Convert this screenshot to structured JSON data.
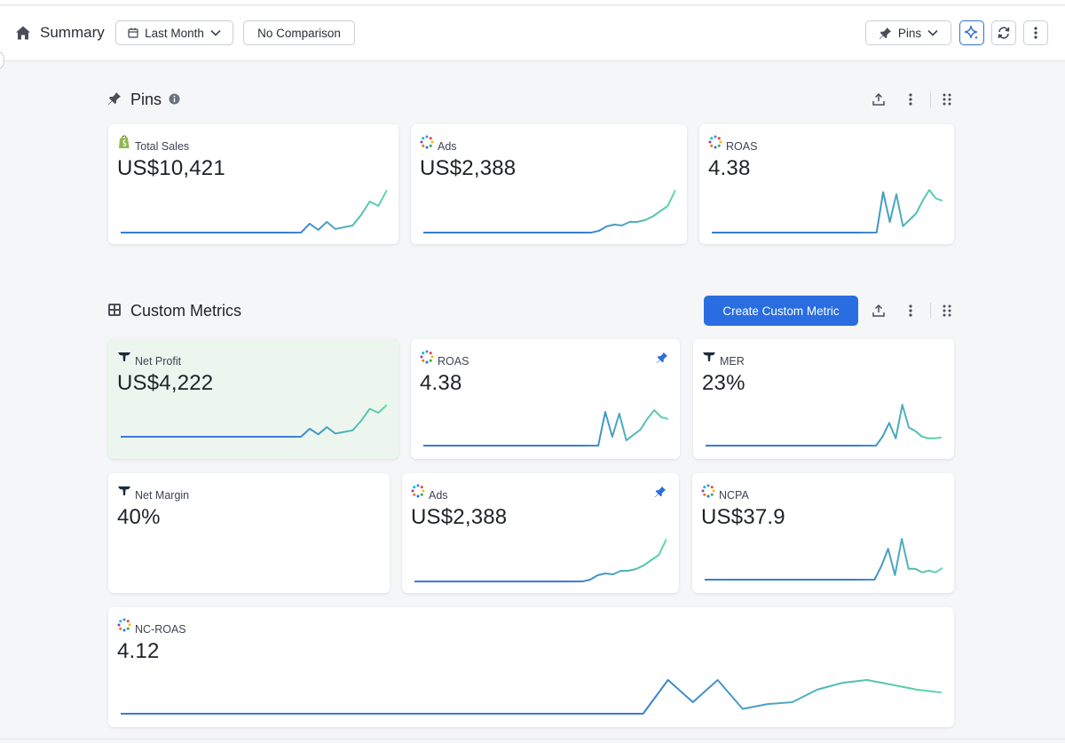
{
  "header": {
    "title": "Summary",
    "date_range": "Last Month",
    "comparison": "No Comparison",
    "pins_label": "Pins"
  },
  "pins_section": {
    "title": "Pins",
    "cards": [
      {
        "label": "Total Sales",
        "value": "US$10,421",
        "source_icon": "shopify-icon"
      },
      {
        "label": "Ads",
        "value": "US$2,388",
        "source_icon": "multi-channel-icon"
      },
      {
        "label": "ROAS",
        "value": "4.38",
        "source_icon": "multi-channel-icon"
      }
    ]
  },
  "custom_section": {
    "title": "Custom Metrics",
    "create_label": "Create Custom Metric",
    "cards": [
      {
        "label": "Net Profit",
        "value": "US$4,222",
        "source_icon": "triple-whale-icon",
        "highlighted": true
      },
      {
        "label": "ROAS",
        "value": "4.38",
        "source_icon": "multi-channel-icon",
        "pinned": true
      },
      {
        "label": "MER",
        "value": "23%",
        "source_icon": "triple-whale-icon"
      },
      {
        "label": "Net Margin",
        "value": "40%",
        "source_icon": "triple-whale-icon"
      },
      {
        "label": "Ads",
        "value": "US$2,388",
        "source_icon": "multi-channel-icon",
        "pinned": true
      },
      {
        "label": "NCPA",
        "value": "US$37.9",
        "source_icon": "multi-channel-icon"
      },
      {
        "label": "NC-ROAS",
        "value": "4.12",
        "source_icon": "multi-channel-icon"
      }
    ]
  },
  "colors": {
    "accent": "#2a6de0",
    "spark_start": "#3a7bd5",
    "spark_end": "#5ed9a6",
    "highlight_card": "#ecf6ef"
  },
  "sparklines": {
    "total_sales": [
      0,
      0,
      0,
      0,
      0,
      0,
      0,
      0,
      0,
      0,
      0,
      0,
      0,
      0,
      0,
      0,
      0,
      0,
      0,
      0,
      0,
      0,
      10,
      3,
      12,
      4,
      6,
      8,
      20,
      35,
      30,
      48
    ],
    "ads": [
      0,
      0,
      0,
      0,
      0,
      0,
      0,
      0,
      0,
      0,
      0,
      0,
      0,
      0,
      0,
      0,
      0,
      0,
      0,
      0,
      0,
      0,
      0,
      2,
      7,
      9,
      8,
      12,
      12,
      14,
      18,
      24,
      30,
      48
    ],
    "roas": [
      0,
      0,
      0,
      0,
      0,
      0,
      0,
      0,
      0,
      0,
      0,
      0,
      0,
      0,
      0,
      0,
      0,
      0,
      0,
      0,
      0,
      0,
      0,
      0,
      0,
      0,
      38,
      10,
      36,
      6,
      12,
      18,
      30,
      40,
      32,
      30
    ],
    "net_profit": [
      0,
      0,
      0,
      0,
      0,
      0,
      0,
      0,
      0,
      0,
      0,
      0,
      0,
      0,
      0,
      0,
      0,
      0,
      0,
      0,
      0,
      0,
      10,
      3,
      12,
      4,
      6,
      8,
      20,
      35,
      30,
      40
    ],
    "mer": [
      0,
      0,
      0,
      0,
      0,
      0,
      0,
      0,
      0,
      0,
      0,
      0,
      0,
      0,
      0,
      0,
      0,
      0,
      0,
      0,
      0,
      0,
      0,
      0,
      0,
      0,
      0,
      10,
      25,
      8,
      45,
      20,
      16,
      10,
      8,
      8,
      9
    ],
    "ads2": [
      0,
      0,
      0,
      0,
      0,
      0,
      0,
      0,
      0,
      0,
      0,
      0,
      0,
      0,
      0,
      0,
      0,
      0,
      0,
      0,
      0,
      0,
      0,
      2,
      7,
      9,
      8,
      12,
      12,
      14,
      18,
      24,
      30,
      48
    ],
    "ncpa": [
      0,
      0,
      0,
      0,
      0,
      0,
      0,
      0,
      0,
      0,
      0,
      0,
      0,
      0,
      0,
      0,
      0,
      0,
      0,
      0,
      0,
      0,
      0,
      0,
      0,
      0,
      15,
      34,
      5,
      45,
      12,
      12,
      8,
      10,
      8,
      13
    ],
    "nc_roas": [
      0,
      0,
      0,
      0,
      0,
      0,
      0,
      0,
      0,
      0,
      0,
      0,
      0,
      0,
      0,
      0,
      0,
      0,
      0,
      0,
      0,
      0,
      35,
      12,
      35,
      5,
      10,
      12,
      25,
      32,
      35,
      30,
      25,
      22
    ]
  }
}
